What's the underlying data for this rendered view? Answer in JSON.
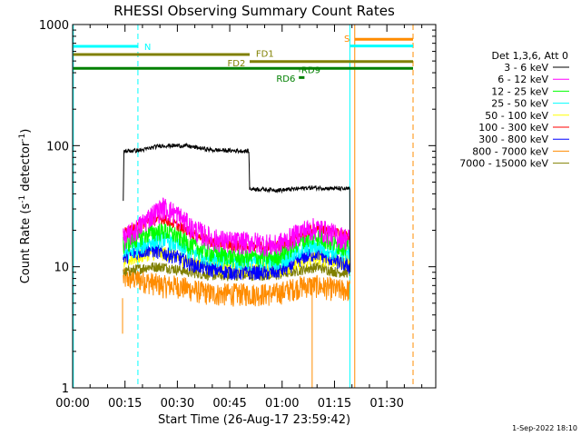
{
  "chart_data": {
    "type": "line",
    "title": "RHESSI Observing Summary Count Rates",
    "xlabel": "Start Time (26-Aug-17 23:59:42)",
    "ylabel_main": "Count Rate (s",
    "ylabel_sup1": "-1",
    "ylabel_mid": " detector",
    "ylabel_sup2": "-1",
    "ylabel_end": ")",
    "x_unit": "minutes after start",
    "xlim": [
      0,
      104
    ],
    "ylim": [
      1,
      1000
    ],
    "y_scale": "log",
    "x_ticks": [
      {
        "value": 0,
        "label": "00:00"
      },
      {
        "value": 15,
        "label": "00:15"
      },
      {
        "value": 30,
        "label": "00:30"
      },
      {
        "value": 45,
        "label": "00:45"
      },
      {
        "value": 60,
        "label": "01:00"
      },
      {
        "value": 75,
        "label": "01:15"
      },
      {
        "value": 90,
        "label": "01:30"
      }
    ],
    "y_ticks": [
      {
        "value": 1,
        "label": "1"
      },
      {
        "value": 10,
        "label": "10"
      },
      {
        "value": 100,
        "label": "100"
      },
      {
        "value": 1000,
        "label": "1000"
      }
    ],
    "legend_title": "Det 1,3,6, Att 0",
    "legend_position": "outside-right",
    "series": [
      {
        "name": "3 - 6 keV",
        "color": "#000000",
        "data": [
          [
            14.5,
            35
          ],
          [
            14.7,
            90
          ],
          [
            20,
            92
          ],
          [
            25,
            100
          ],
          [
            32,
            100
          ],
          [
            40,
            92
          ],
          [
            50.5,
            90
          ],
          [
            50.7,
            44
          ],
          [
            60,
            43
          ],
          [
            68,
            45
          ],
          [
            78,
            44
          ],
          [
            79.4,
            44
          ],
          [
            79.5,
            9
          ]
        ]
      },
      {
        "name": "6 - 12 keV",
        "color": "#ff00ff",
        "data": [
          [
            14.5,
            17
          ],
          [
            18,
            20
          ],
          [
            22,
            26
          ],
          [
            26,
            31
          ],
          [
            30,
            27
          ],
          [
            34,
            21
          ],
          [
            40,
            17
          ],
          [
            46,
            16
          ],
          [
            52,
            16
          ],
          [
            58,
            15
          ],
          [
            62,
            17
          ],
          [
            66,
            20
          ],
          [
            70,
            21
          ],
          [
            76,
            18
          ],
          [
            79.4,
            17
          ]
        ]
      },
      {
        "name": "12 - 25 keV",
        "color": "#00ff00",
        "data": [
          [
            14.5,
            15
          ],
          [
            18,
            17
          ],
          [
            22,
            19
          ],
          [
            26,
            20
          ],
          [
            30,
            18
          ],
          [
            34,
            15
          ],
          [
            40,
            13
          ],
          [
            46,
            12
          ],
          [
            52,
            12
          ],
          [
            58,
            12
          ],
          [
            62,
            14
          ],
          [
            66,
            17
          ],
          [
            70,
            18
          ],
          [
            76,
            15
          ],
          [
            79.4,
            15
          ]
        ]
      },
      {
        "name": "25 - 50 keV",
        "color": "#00ffff",
        "data": [
          [
            14.5,
            13
          ],
          [
            18,
            14
          ],
          [
            22,
            16
          ],
          [
            26,
            17
          ],
          [
            30,
            15
          ],
          [
            34,
            13
          ],
          [
            40,
            12
          ],
          [
            46,
            11
          ],
          [
            52,
            11
          ],
          [
            58,
            11
          ],
          [
            62,
            12
          ],
          [
            66,
            14
          ],
          [
            70,
            15
          ],
          [
            76,
            13
          ],
          [
            79.4,
            13
          ]
        ]
      },
      {
        "name": "50 - 100 keV",
        "color": "#ffff00",
        "data": [
          [
            14.5,
            11
          ],
          [
            18,
            12
          ],
          [
            22,
            13
          ],
          [
            26,
            13
          ],
          [
            30,
            12
          ],
          [
            34,
            11
          ],
          [
            40,
            10
          ],
          [
            46,
            9.5
          ],
          [
            52,
            9.5
          ],
          [
            58,
            9.5
          ],
          [
            62,
            10
          ],
          [
            66,
            11
          ],
          [
            70,
            12
          ],
          [
            76,
            11
          ],
          [
            79.4,
            11
          ]
        ]
      },
      {
        "name": "100 - 300 keV",
        "color": "#ff0000",
        "data": [
          [
            14.5,
            19
          ],
          [
            18,
            21
          ],
          [
            22,
            24
          ],
          [
            26,
            25
          ],
          [
            30,
            22
          ],
          [
            34,
            19
          ],
          [
            40,
            16
          ],
          [
            46,
            15
          ],
          [
            52,
            15
          ],
          [
            58,
            15
          ],
          [
            62,
            16
          ],
          [
            66,
            19
          ],
          [
            70,
            21
          ],
          [
            76,
            19
          ],
          [
            79.4,
            18
          ]
        ]
      },
      {
        "name": "300 - 800 keV",
        "color": "#0000ff",
        "data": [
          [
            14.5,
            12
          ],
          [
            18,
            13
          ],
          [
            22,
            14
          ],
          [
            26,
            13
          ],
          [
            30,
            12
          ],
          [
            34,
            10.5
          ],
          [
            40,
            9.5
          ],
          [
            46,
            9
          ],
          [
            52,
            9
          ],
          [
            58,
            9
          ],
          [
            62,
            10
          ],
          [
            66,
            12
          ],
          [
            70,
            13
          ],
          [
            76,
            11
          ],
          [
            79.4,
            10
          ]
        ]
      },
      {
        "name": "800 - 7000 keV",
        "color": "#ff8c00",
        "data": [
          [
            14.5,
            8
          ],
          [
            18,
            8
          ],
          [
            22,
            7.5
          ],
          [
            26,
            7
          ],
          [
            30,
            7
          ],
          [
            34,
            6.5
          ],
          [
            40,
            6
          ],
          [
            46,
            6
          ],
          [
            52,
            6
          ],
          [
            58,
            6
          ],
          [
            62,
            6.5
          ],
          [
            66,
            7
          ],
          [
            70,
            7
          ],
          [
            76,
            6.5
          ],
          [
            79.4,
            6.5
          ]
        ]
      },
      {
        "name": "7000 - 15000 keV",
        "color": "#808000",
        "data": [
          [
            14.5,
            9
          ],
          [
            18,
            9.5
          ],
          [
            22,
            10
          ],
          [
            26,
            10
          ],
          [
            30,
            9.5
          ],
          [
            34,
            9
          ],
          [
            40,
            8.5
          ],
          [
            46,
            8.5
          ],
          [
            52,
            8.5
          ],
          [
            58,
            8.5
          ],
          [
            62,
            9
          ],
          [
            66,
            9.5
          ],
          [
            70,
            10
          ],
          [
            76,
            9
          ],
          [
            79.4,
            9
          ]
        ]
      }
    ],
    "spikes": [
      {
        "color": "#ff8c00",
        "x": 14.3,
        "from": 5.5,
        "to": 2.8
      },
      {
        "color": "#ff8c00",
        "x": 68.6,
        "from": 6,
        "to": 0.9
      }
    ],
    "annotations": [
      {
        "label": "N",
        "color": "#00ffff",
        "x_from": 0.2,
        "x_to": 18.7,
        "y": 660,
        "label_x": 20.5,
        "label_y": 660,
        "label_anchor": "start"
      },
      {
        "label": "FD1",
        "color": "#808000",
        "x_from": 0.2,
        "x_to": 50.7,
        "y": 565,
        "label_x": 52.5,
        "label_y": 580,
        "label_anchor": "start"
      },
      {
        "label": "FD2",
        "color": "#808000",
        "x_from": 50.7,
        "x_to": 97.5,
        "y": 495,
        "label_x": 49.5,
        "label_y": 485,
        "label_anchor": "end"
      },
      {
        "label": "",
        "color": "#008000",
        "x_from": 0.2,
        "x_to": 97.5,
        "y": 435,
        "label_x": 0,
        "label_y": 0,
        "label_anchor": "start"
      },
      {
        "label": "RD6",
        "color": "#008000",
        "x_from": 64.8,
        "x_to": 66.4,
        "y": 365,
        "label_x": 63.8,
        "label_y": 362,
        "label_anchor": "end"
      },
      {
        "label": "RD9",
        "color": "#008000",
        "x_from": 64.9,
        "x_to": 65.1,
        "y": 415,
        "label_x": 65.5,
        "label_y": 425,
        "label_anchor": "start"
      },
      {
        "label": "S",
        "color": "#ff8c00",
        "x_from": 80.8,
        "x_to": 97.5,
        "y": 755,
        "label_x": 79.4,
        "label_y": 770,
        "label_anchor": "end"
      },
      {
        "label": "",
        "color": "#00ffff",
        "x_from": 79.4,
        "x_to": 97.5,
        "y": 665,
        "label_x": 0,
        "label_y": 0,
        "label_anchor": "start"
      }
    ],
    "vlines": [
      {
        "x": 0.2,
        "color": "#00ffff",
        "style": "solid"
      },
      {
        "x": 18.7,
        "color": "#00ffff",
        "style": "dashed"
      },
      {
        "x": 79.4,
        "color": "#00ffff",
        "style": "solid"
      },
      {
        "x": 80.8,
        "color": "#ff8c00",
        "style": "solid"
      },
      {
        "x": 97.5,
        "color": "#00ffff",
        "style": "dashed"
      },
      {
        "x": 97.5,
        "color": "#ff8c00",
        "style": "dashed"
      }
    ],
    "timestamp": "1-Sep-2022 18:10"
  }
}
